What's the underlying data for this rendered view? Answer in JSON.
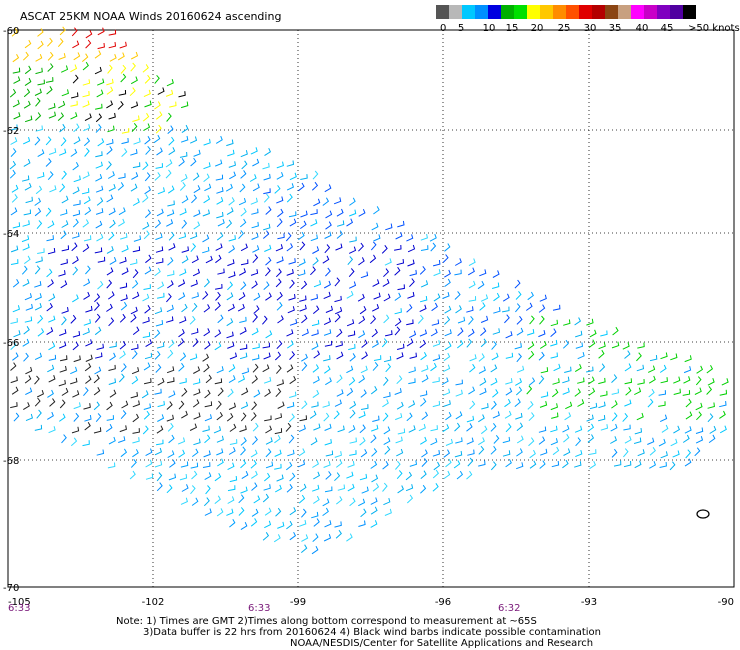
{
  "title": "ASCAT 25KM NOAA Winds 20160624 ascending",
  "legend": {
    "bins": [
      {
        "label": "0",
        "color": "#555555"
      },
      {
        "label": "",
        "color": "#b8b8b8"
      },
      {
        "label": "5",
        "color": "#00c8ff"
      },
      {
        "label": "",
        "color": "#0090ff"
      },
      {
        "label": "10",
        "color": "#0000e0"
      },
      {
        "label": "15",
        "color": "#00b000"
      },
      {
        "label": "",
        "color": "#00e000"
      },
      {
        "label": "20",
        "color": "#ffff00"
      },
      {
        "label": "",
        "color": "#ffc800"
      },
      {
        "label": "25",
        "color": "#ff8c00"
      },
      {
        "label": "",
        "color": "#ff5000"
      },
      {
        "label": "30",
        "color": "#e00000"
      },
      {
        "label": "",
        "color": "#b40000"
      },
      {
        "label": "35",
        "color": "#8b4513"
      },
      {
        "label": "",
        "color": "#c8a080"
      },
      {
        "label": "40",
        "color": "#ff00ff"
      },
      {
        "label": "",
        "color": "#c800c8"
      },
      {
        "label": "45",
        "color": "#8000c0"
      },
      {
        "label": "",
        "color": "#5000a0"
      },
      {
        "label": ">50 knots",
        "color": "#000000"
      }
    ],
    "tick_labels": [
      "0",
      "5",
      "10",
      "15",
      "20",
      "25",
      "30",
      "35",
      "40",
      "45",
      ">50 knots"
    ]
  },
  "axes": {
    "lon_ticks": [
      "-105",
      "-102",
      "-99",
      "-96",
      "-93",
      "-90"
    ],
    "lat_ticks": [
      "-60",
      "-62",
      "-64",
      "-66",
      "-68",
      "-70"
    ]
  },
  "times": [
    "6:33",
    "6:33",
    "6:32"
  ],
  "notes": {
    "line1": "Note: 1) Times are GMT 2)Times along bottom correspond to measurement at ~65S",
    "line2": "3)Data buffer is 22 hrs from 20160624 4) Black wind barbs indicate possible contamination",
    "line3": "NOAA/NESDIS/Center for Satellite Applications and Research"
  }
}
